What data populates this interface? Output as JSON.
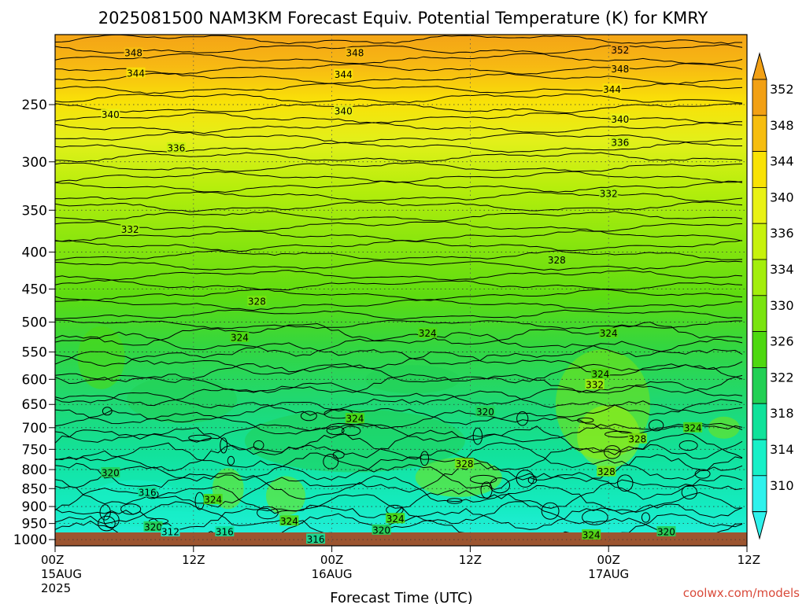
{
  "chart_data": {
    "type": "heatmap",
    "title": "2025081500 NAM3KM Forecast Equiv. Potential Temperature (K) for KMRY",
    "xlabel": "Forecast Time (UTC)",
    "ylabel": "",
    "y_scale": "log",
    "y_reversed": true,
    "x": {
      "range": [
        "2025-08-15 00Z",
        "2025-08-17 12Z"
      ],
      "ticks": [
        {
          "label": "00Z",
          "sub": [
            "15AUG",
            "2025"
          ],
          "hour": 0
        },
        {
          "label": "12Z",
          "sub": [],
          "hour": 12
        },
        {
          "label": "00Z",
          "sub": [
            "16AUG"
          ],
          "hour": 24
        },
        {
          "label": "12Z",
          "sub": [],
          "hour": 36
        },
        {
          "label": "00Z",
          "sub": [
            "17AUG"
          ],
          "hour": 48
        },
        {
          "label": "12Z",
          "sub": [],
          "hour": 60
        }
      ]
    },
    "y": {
      "range": [
        1020,
        200
      ],
      "ticks": [
        250,
        300,
        350,
        400,
        450,
        500,
        550,
        600,
        650,
        700,
        750,
        800,
        850,
        900,
        950,
        1000
      ]
    },
    "grid": true,
    "colorbar": {
      "labels": [
        352,
        348,
        344,
        340,
        336,
        334,
        330,
        326,
        322,
        318,
        314,
        310
      ],
      "colors": [
        "#f2a014",
        "#f6bd10",
        "#f9e205",
        "#e9f215",
        "#c7f20c",
        "#a3ee0c",
        "#7ae410",
        "#4ed810",
        "#22d054",
        "#0fe29a",
        "#18f0c8",
        "#2ef2ec"
      ],
      "placement": "right"
    },
    "surface_color": "#9c5530",
    "contour_labels": [
      {
        "v": 348,
        "h": 6.8,
        "p": 212
      },
      {
        "v": 348,
        "h": 26,
        "p": 212
      },
      {
        "v": 352,
        "h": 49,
        "p": 210
      },
      {
        "v": 348,
        "h": 49,
        "p": 223
      },
      {
        "v": 344,
        "h": 7,
        "p": 226
      },
      {
        "v": 344,
        "h": 25,
        "p": 227
      },
      {
        "v": 344,
        "h": 48.3,
        "p": 238
      },
      {
        "v": 340,
        "h": 4.8,
        "p": 258
      },
      {
        "v": 340,
        "h": 25,
        "p": 255
      },
      {
        "v": 340,
        "h": 49,
        "p": 262
      },
      {
        "v": 336,
        "h": 10.5,
        "p": 287
      },
      {
        "v": 336,
        "h": 49,
        "p": 282
      },
      {
        "v": 332,
        "h": 6.5,
        "p": 372
      },
      {
        "v": 332,
        "h": 48,
        "p": 332
      },
      {
        "v": 328,
        "h": 43.5,
        "p": 410
      },
      {
        "v": 328,
        "h": 17.5,
        "p": 468
      },
      {
        "v": 324,
        "h": 16,
        "p": 525
      },
      {
        "v": 324,
        "h": 32.3,
        "p": 518
      },
      {
        "v": 324,
        "h": 48,
        "p": 518
      },
      {
        "v": 324,
        "h": 47.3,
        "p": 590
      },
      {
        "v": 332,
        "h": 46.8,
        "p": 610
      },
      {
        "v": 320,
        "h": 37.3,
        "p": 665
      },
      {
        "v": 324,
        "h": 26,
        "p": 680
      },
      {
        "v": 324,
        "h": 55.3,
        "p": 700
      },
      {
        "v": 328,
        "h": 50.5,
        "p": 725
      },
      {
        "v": 328,
        "h": 35.5,
        "p": 785
      },
      {
        "v": 328,
        "h": 47.8,
        "p": 805
      },
      {
        "v": 320,
        "h": 4.8,
        "p": 808
      },
      {
        "v": 316,
        "h": 8,
        "p": 860
      },
      {
        "v": 324,
        "h": 13.7,
        "p": 880
      },
      {
        "v": 324,
        "h": 20.3,
        "p": 942
      },
      {
        "v": 324,
        "h": 29.5,
        "p": 935
      },
      {
        "v": 320,
        "h": 8.5,
        "p": 960
      },
      {
        "v": 312,
        "h": 10,
        "p": 975
      },
      {
        "v": 316,
        "h": 14.7,
        "p": 975
      },
      {
        "v": 320,
        "h": 28.3,
        "p": 970
      },
      {
        "v": 316,
        "h": 22.6,
        "p": 998
      },
      {
        "v": 324,
        "h": 46.5,
        "p": 985
      },
      {
        "v": 320,
        "h": 53,
        "p": 975
      }
    ]
  },
  "footer": {
    "watermark": "coolwx.com/models"
  }
}
